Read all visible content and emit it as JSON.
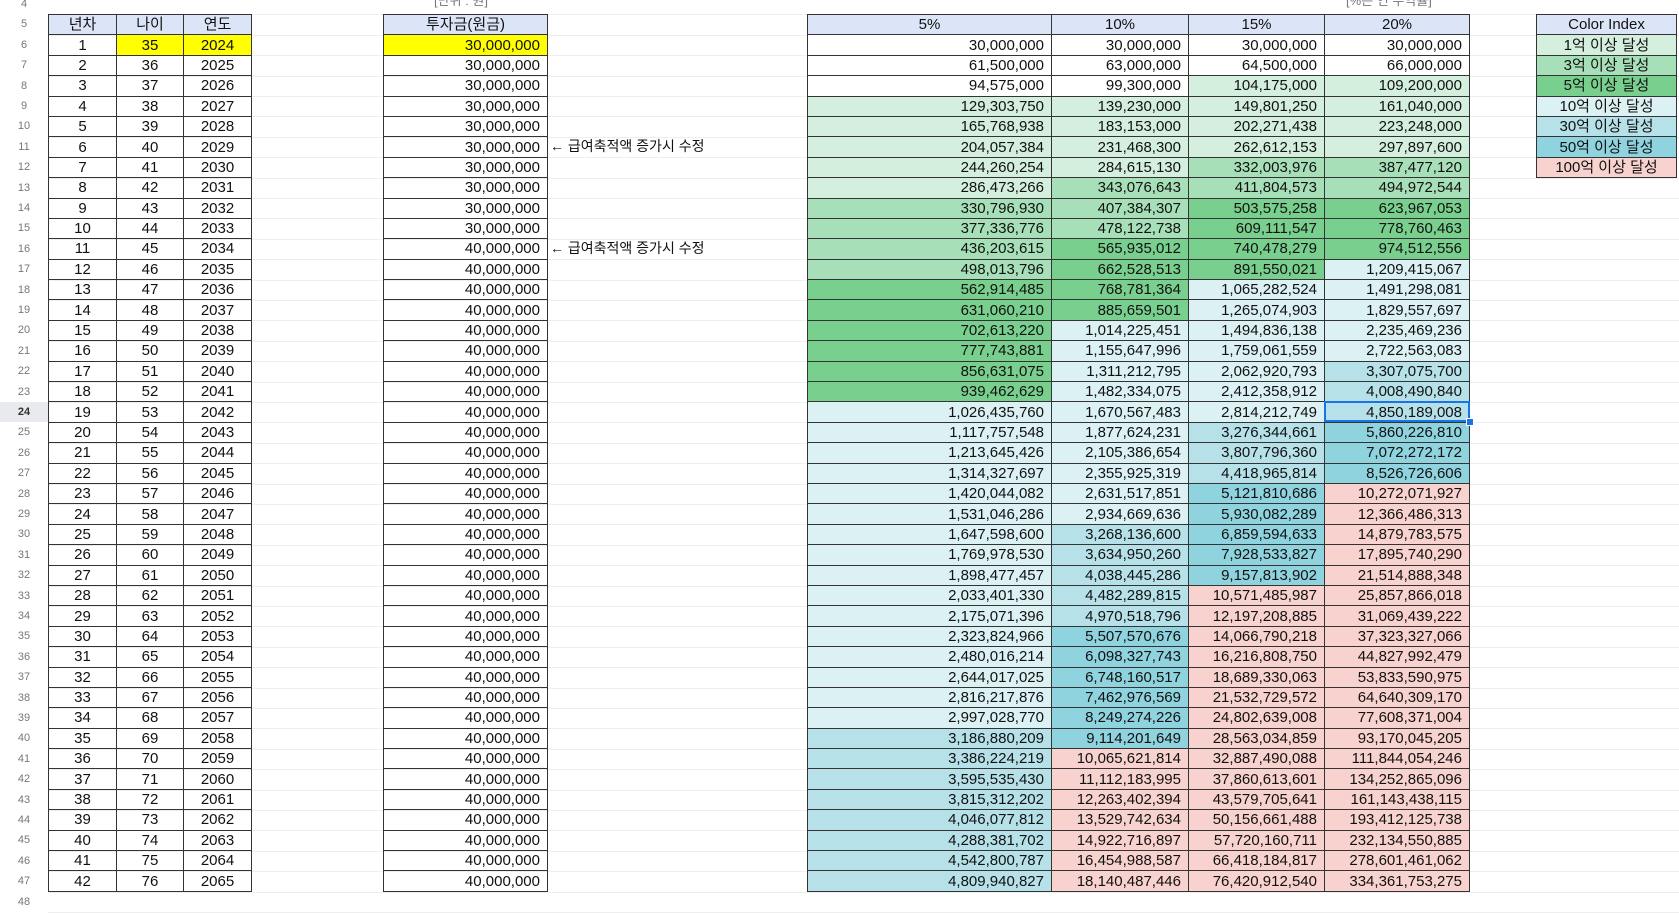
{
  "row_numbers": [
    "4",
    "5",
    "6",
    "7",
    "8",
    "9",
    "10",
    "11",
    "12",
    "13",
    "14",
    "15",
    "16",
    "17",
    "18",
    "19",
    "20",
    "21",
    "22",
    "23",
    "24",
    "25",
    "26",
    "27",
    "28",
    "29",
    "30",
    "31",
    "32",
    "33",
    "34",
    "35",
    "36",
    "37",
    "38",
    "39",
    "40",
    "41",
    "42",
    "43",
    "44",
    "45",
    "46",
    "47",
    "48"
  ],
  "selected_row": "24",
  "captions": {
    "unit": "[단위 : 원]",
    "rate": "[%은 연 수익률]"
  },
  "left_table": {
    "headers": [
      "년차",
      "나이",
      "연도"
    ],
    "rows": [
      [
        "1",
        "35",
        "2024"
      ],
      [
        "2",
        "36",
        "2025"
      ],
      [
        "3",
        "37",
        "2026"
      ],
      [
        "4",
        "38",
        "2027"
      ],
      [
        "5",
        "39",
        "2028"
      ],
      [
        "6",
        "40",
        "2029"
      ],
      [
        "7",
        "41",
        "2030"
      ],
      [
        "8",
        "42",
        "2031"
      ],
      [
        "9",
        "43",
        "2032"
      ],
      [
        "10",
        "44",
        "2033"
      ],
      [
        "11",
        "45",
        "2034"
      ],
      [
        "12",
        "46",
        "2035"
      ],
      [
        "13",
        "47",
        "2036"
      ],
      [
        "14",
        "48",
        "2037"
      ],
      [
        "15",
        "49",
        "2038"
      ],
      [
        "16",
        "50",
        "2039"
      ],
      [
        "17",
        "51",
        "2040"
      ],
      [
        "18",
        "52",
        "2041"
      ],
      [
        "19",
        "53",
        "2042"
      ],
      [
        "20",
        "54",
        "2043"
      ],
      [
        "21",
        "55",
        "2044"
      ],
      [
        "22",
        "56",
        "2045"
      ],
      [
        "23",
        "57",
        "2046"
      ],
      [
        "24",
        "58",
        "2047"
      ],
      [
        "25",
        "59",
        "2048"
      ],
      [
        "26",
        "60",
        "2049"
      ],
      [
        "27",
        "61",
        "2050"
      ],
      [
        "28",
        "62",
        "2051"
      ],
      [
        "29",
        "63",
        "2052"
      ],
      [
        "30",
        "64",
        "2053"
      ],
      [
        "31",
        "65",
        "2054"
      ],
      [
        "32",
        "66",
        "2055"
      ],
      [
        "33",
        "67",
        "2056"
      ],
      [
        "34",
        "68",
        "2057"
      ],
      [
        "35",
        "69",
        "2058"
      ],
      [
        "36",
        "70",
        "2059"
      ],
      [
        "37",
        "71",
        "2060"
      ],
      [
        "38",
        "72",
        "2061"
      ],
      [
        "39",
        "73",
        "2062"
      ],
      [
        "40",
        "74",
        "2063"
      ],
      [
        "41",
        "75",
        "2064"
      ],
      [
        "42",
        "76",
        "2065"
      ]
    ]
  },
  "invest_table": {
    "header": "투자금(원금)",
    "values": [
      "30,000,000",
      "30,000,000",
      "30,000,000",
      "30,000,000",
      "30,000,000",
      "30,000,000",
      "30,000,000",
      "30,000,000",
      "30,000,000",
      "30,000,000",
      "40,000,000",
      "40,000,000",
      "40,000,000",
      "40,000,000",
      "40,000,000",
      "40,000,000",
      "40,000,000",
      "40,000,000",
      "40,000,000",
      "40,000,000",
      "40,000,000",
      "40,000,000",
      "40,000,000",
      "40,000,000",
      "40,000,000",
      "40,000,000",
      "40,000,000",
      "40,000,000",
      "40,000,000",
      "40,000,000",
      "40,000,000",
      "40,000,000",
      "40,000,000",
      "40,000,000",
      "40,000,000",
      "40,000,000",
      "40,000,000",
      "40,000,000",
      "40,000,000",
      "40,000,000",
      "40,000,000",
      "40,000,000"
    ]
  },
  "notes": [
    {
      "row": 5,
      "text": "← 급여축적액 증가시 수정"
    },
    {
      "row": 10,
      "text": "← 급여축적액 증가시 수정"
    }
  ],
  "returns_table": {
    "headers": [
      "5%",
      "10%",
      "15%",
      "20%"
    ],
    "rows": [
      [
        "30,000,000",
        "30,000,000",
        "30,000,000",
        "30,000,000"
      ],
      [
        "61,500,000",
        "63,000,000",
        "64,500,000",
        "66,000,000"
      ],
      [
        "94,575,000",
        "99,300,000",
        "104,175,000",
        "109,200,000"
      ],
      [
        "129,303,750",
        "139,230,000",
        "149,801,250",
        "161,040,000"
      ],
      [
        "165,768,938",
        "183,153,000",
        "202,271,438",
        "223,248,000"
      ],
      [
        "204,057,384",
        "231,468,300",
        "262,612,153",
        "297,897,600"
      ],
      [
        "244,260,254",
        "284,615,130",
        "332,003,976",
        "387,477,120"
      ],
      [
        "286,473,266",
        "343,076,643",
        "411,804,573",
        "494,972,544"
      ],
      [
        "330,796,930",
        "407,384,307",
        "503,575,258",
        "623,967,053"
      ],
      [
        "377,336,776",
        "478,122,738",
        "609,111,547",
        "778,760,463"
      ],
      [
        "436,203,615",
        "565,935,012",
        "740,478,279",
        "974,512,556"
      ],
      [
        "498,013,796",
        "662,528,513",
        "891,550,021",
        "1,209,415,067"
      ],
      [
        "562,914,485",
        "768,781,364",
        "1,065,282,524",
        "1,491,298,081"
      ],
      [
        "631,060,210",
        "885,659,501",
        "1,265,074,903",
        "1,829,557,697"
      ],
      [
        "702,613,220",
        "1,014,225,451",
        "1,494,836,138",
        "2,235,469,236"
      ],
      [
        "777,743,881",
        "1,155,647,996",
        "1,759,061,559",
        "2,722,563,083"
      ],
      [
        "856,631,075",
        "1,311,212,795",
        "2,062,920,793",
        "3,307,075,700"
      ],
      [
        "939,462,629",
        "1,482,334,075",
        "2,412,358,912",
        "4,008,490,840"
      ],
      [
        "1,026,435,760",
        "1,670,567,483",
        "2,814,212,749",
        "4,850,189,008"
      ],
      [
        "1,117,757,548",
        "1,877,624,231",
        "3,276,344,661",
        "5,860,226,810"
      ],
      [
        "1,213,645,426",
        "2,105,386,654",
        "3,807,796,360",
        "7,072,272,172"
      ],
      [
        "1,314,327,697",
        "2,355,925,319",
        "4,418,965,814",
        "8,526,726,606"
      ],
      [
        "1,420,044,082",
        "2,631,517,851",
        "5,121,810,686",
        "10,272,071,927"
      ],
      [
        "1,531,046,286",
        "2,934,669,636",
        "5,930,082,289",
        "12,366,486,313"
      ],
      [
        "1,647,598,600",
        "3,268,136,600",
        "6,859,594,633",
        "14,879,783,575"
      ],
      [
        "1,769,978,530",
        "3,634,950,260",
        "7,928,533,827",
        "17,895,740,290"
      ],
      [
        "1,898,477,457",
        "4,038,445,286",
        "9,157,813,902",
        "21,514,888,348"
      ],
      [
        "2,033,401,330",
        "4,482,289,815",
        "10,571,485,987",
        "25,857,866,018"
      ],
      [
        "2,175,071,396",
        "4,970,518,796",
        "12,197,208,885",
        "31,069,439,222"
      ],
      [
        "2,323,824,966",
        "5,507,570,676",
        "14,066,790,218",
        "37,323,327,066"
      ],
      [
        "2,480,016,214",
        "6,098,327,743",
        "16,216,808,750",
        "44,827,992,479"
      ],
      [
        "2,644,017,025",
        "6,748,160,517",
        "18,689,330,063",
        "53,833,590,975"
      ],
      [
        "2,816,217,876",
        "7,462,976,569",
        "21,532,729,572",
        "64,640,309,170"
      ],
      [
        "2,997,028,770",
        "8,249,274,226",
        "24,802,639,008",
        "77,608,371,004"
      ],
      [
        "3,186,880,209",
        "9,114,201,649",
        "28,563,034,859",
        "93,170,045,205"
      ],
      [
        "3,386,224,219",
        "10,065,621,814",
        "32,887,490,088",
        "111,844,054,246"
      ],
      [
        "3,595,535,430",
        "11,112,183,995",
        "37,860,613,601",
        "134,252,865,096"
      ],
      [
        "3,815,312,202",
        "12,263,402,394",
        "43,579,705,641",
        "161,143,438,115"
      ],
      [
        "4,046,077,812",
        "13,529,742,634",
        "50,156,661,488",
        "193,412,125,738"
      ],
      [
        "4,288,381,702",
        "14,922,716,897",
        "57,720,160,711",
        "232,134,550,885"
      ],
      [
        "4,542,800,787",
        "16,454,988,587",
        "66,418,184,817",
        "278,601,461,062"
      ],
      [
        "4,809,940,827",
        "18,140,487,446",
        "76,420,912,540",
        "334,361,753,275"
      ]
    ]
  },
  "color_index": {
    "header": "Color Index",
    "items": [
      {
        "label": "1억 이상 달성",
        "color": "#d4efdd"
      },
      {
        "label": "3억 이상 달성",
        "color": "#a7e0b8"
      },
      {
        "label": "5억 이상 달성",
        "color": "#79cf8e"
      },
      {
        "label": "10억 이상 달성",
        "color": "#dcf1f4"
      },
      {
        "label": "30억 이상 달성",
        "color": "#b6e1e9"
      },
      {
        "label": "50억 이상 달성",
        "color": "#8fd3df"
      },
      {
        "label": "100억 이상 달성",
        "color": "#f8d2cf"
      }
    ]
  }
}
